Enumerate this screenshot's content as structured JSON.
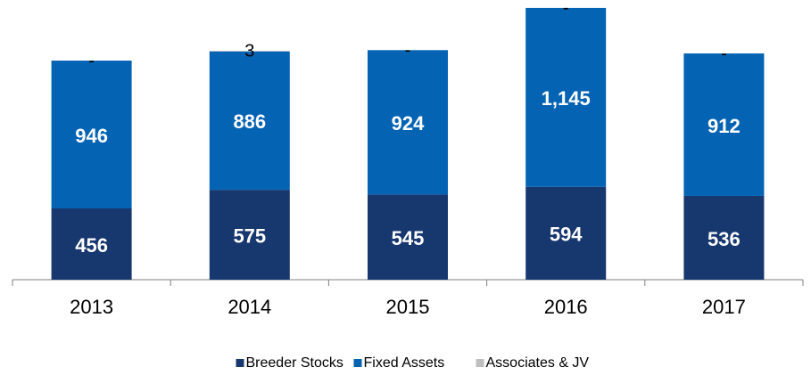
{
  "chart_data": {
    "type": "stacked-bar",
    "categories": [
      "2013",
      "2014",
      "2015",
      "2016",
      "2017"
    ],
    "series": [
      {
        "name": "Breeder Stocks",
        "color": "#17376f",
        "values": [
          456,
          575,
          545,
          594,
          536
        ]
      },
      {
        "name": "Fixed Assets",
        "color": "#0563b3",
        "values": [
          946,
          886,
          924,
          1145,
          912
        ],
        "value_labels": [
          "946",
          "886",
          "924",
          "1,145",
          "912"
        ]
      },
      {
        "name": "Associates & JV",
        "color": "#bfbfbf",
        "values": [
          0,
          3,
          0,
          0,
          0
        ],
        "value_labels": [
          "-",
          "3",
          "-",
          "-",
          "-"
        ]
      }
    ],
    "ylim": [
      0,
      1750
    ],
    "legend": "bottom"
  }
}
